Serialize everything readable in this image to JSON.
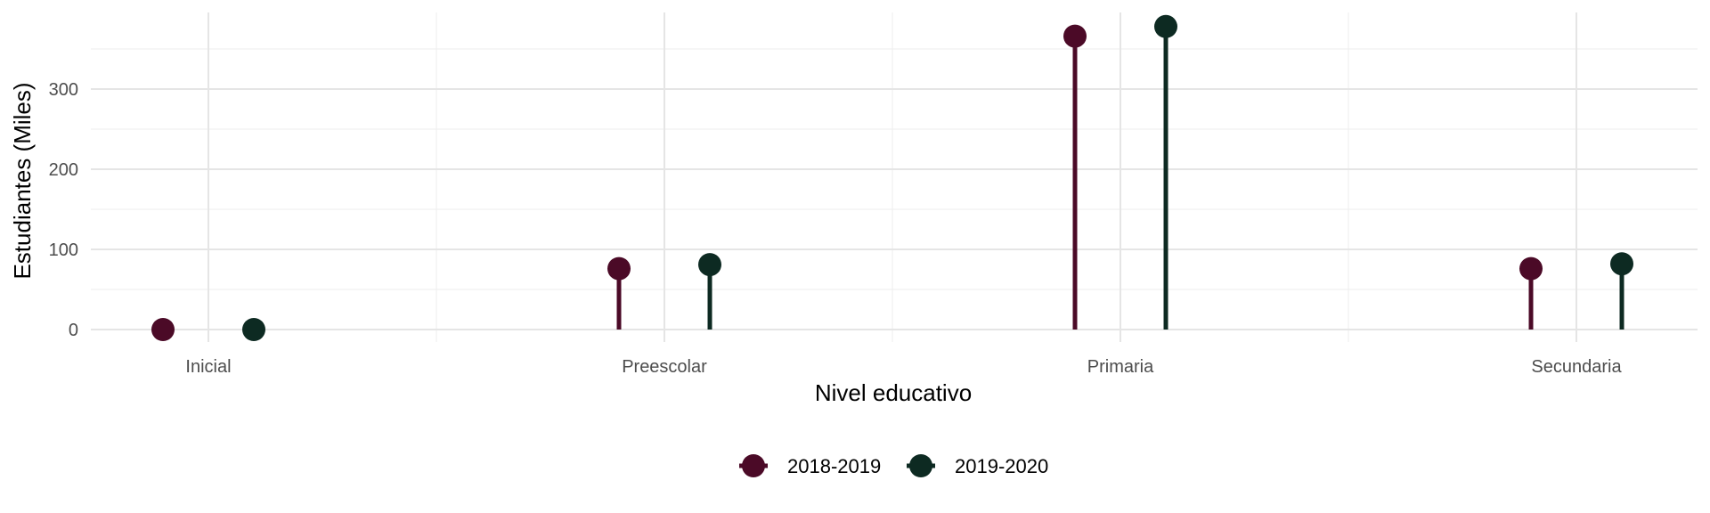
{
  "chart_data": {
    "type": "lollipop",
    "categories": [
      "Inicial",
      "Preescolar",
      "Primaria",
      "Secundaria"
    ],
    "series": [
      {
        "name": "2018-2019",
        "color": "#4b0a27",
        "values": [
          0,
          76,
          366,
          76
        ]
      },
      {
        "name": "2019-2020",
        "color": "#0d2a22",
        "values": [
          0,
          81,
          378,
          82
        ]
      }
    ],
    "xlabel": "Nivel educativo",
    "ylabel": "Estudiantes (Miles)",
    "ylim": [
      0,
      390
    ],
    "yticks": [
      0,
      100,
      200,
      300
    ],
    "grid": true,
    "legend_position": "bottom"
  }
}
